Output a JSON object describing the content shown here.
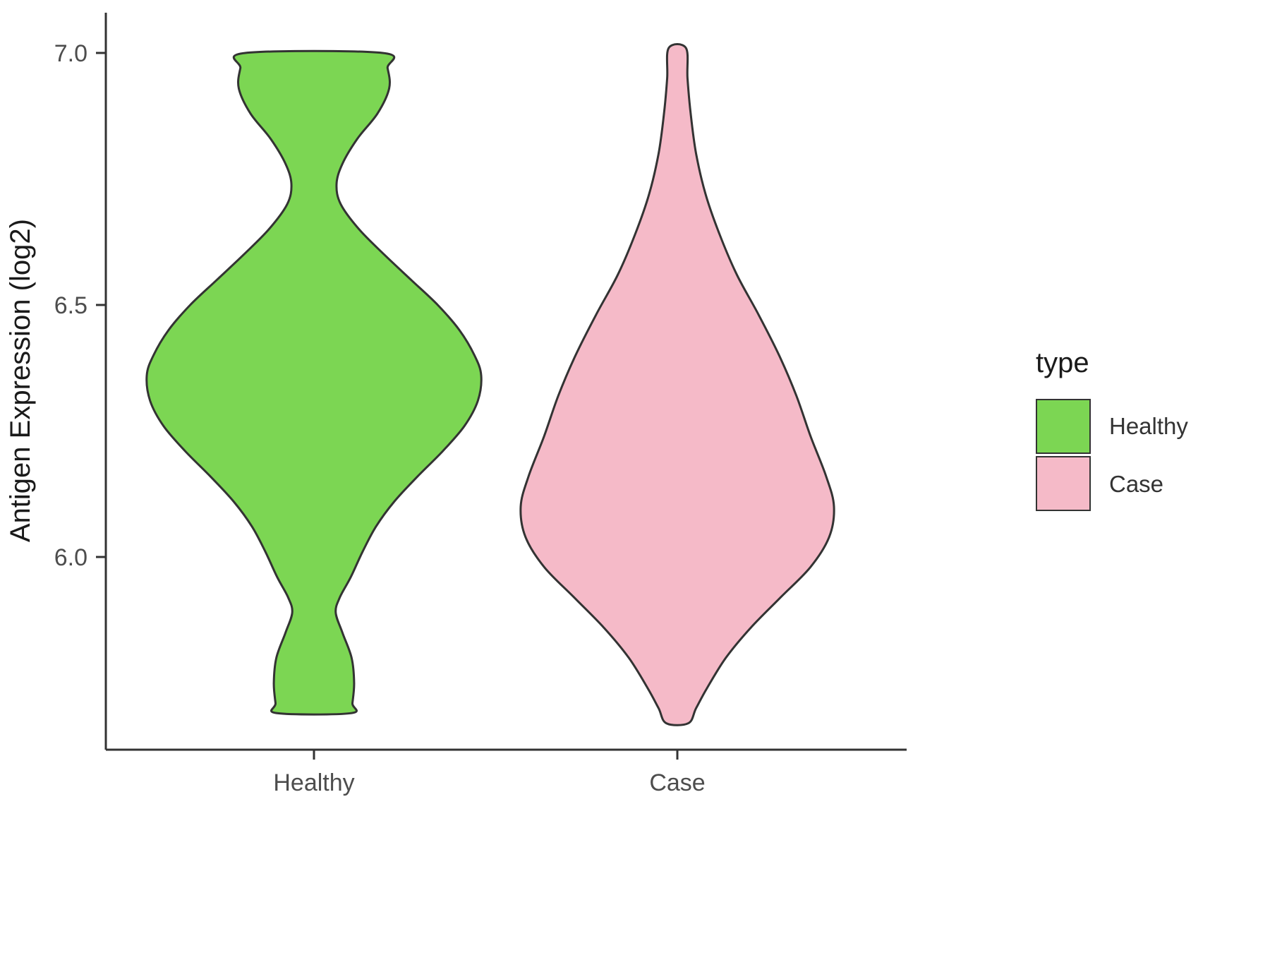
{
  "chart_data": {
    "type": "violin",
    "title": "",
    "xlabel": "",
    "ylabel": "Antigen Expression (log2)",
    "categories": [
      "Healthy",
      "Case"
    ],
    "y_ticks": [
      7.0,
      6.5,
      6.0
    ],
    "y_tick_labels": [
      "7.0",
      "6.5",
      "6.0"
    ],
    "ylim": [
      5.6,
      7.05
    ],
    "grid": "off",
    "legend_position": "right",
    "outline_color": "#333333",
    "axis_color": "#333333",
    "tick_label_color": "#4d4d4d",
    "axis_title_color": "#1a1a1a",
    "series": [
      {
        "name": "Healthy",
        "color": "#7CD653",
        "value_range": [
          5.69,
          7.0
        ],
        "profile": [
          [
            7.0,
            0.41
          ],
          [
            6.97,
            0.44
          ],
          [
            6.93,
            0.45
          ],
          [
            6.88,
            0.38
          ],
          [
            6.83,
            0.26
          ],
          [
            6.78,
            0.17
          ],
          [
            6.74,
            0.135
          ],
          [
            6.7,
            0.16
          ],
          [
            6.65,
            0.27
          ],
          [
            6.6,
            0.42
          ],
          [
            6.55,
            0.58
          ],
          [
            6.5,
            0.74
          ],
          [
            6.45,
            0.87
          ],
          [
            6.4,
            0.96
          ],
          [
            6.36,
            1.0
          ],
          [
            6.31,
            0.98
          ],
          [
            6.26,
            0.9
          ],
          [
            6.21,
            0.77
          ],
          [
            6.16,
            0.62
          ],
          [
            6.11,
            0.48
          ],
          [
            6.06,
            0.37
          ],
          [
            6.01,
            0.29
          ],
          [
            5.96,
            0.22
          ],
          [
            5.92,
            0.155
          ],
          [
            5.89,
            0.13
          ],
          [
            5.85,
            0.17
          ],
          [
            5.8,
            0.225
          ],
          [
            5.75,
            0.24
          ],
          [
            5.71,
            0.23
          ],
          [
            5.69,
            0.22
          ]
        ]
      },
      {
        "name": "Case",
        "color": "#F5BAC8",
        "value_range": [
          5.67,
          7.01
        ],
        "profile": [
          [
            7.01,
            0.055
          ],
          [
            6.95,
            0.065
          ],
          [
            6.88,
            0.085
          ],
          [
            6.8,
            0.12
          ],
          [
            6.72,
            0.18
          ],
          [
            6.64,
            0.27
          ],
          [
            6.56,
            0.38
          ],
          [
            6.48,
            0.52
          ],
          [
            6.4,
            0.65
          ],
          [
            6.32,
            0.76
          ],
          [
            6.24,
            0.85
          ],
          [
            6.16,
            0.95
          ],
          [
            6.1,
            1.0
          ],
          [
            6.04,
            0.97
          ],
          [
            5.98,
            0.85
          ],
          [
            5.92,
            0.66
          ],
          [
            5.86,
            0.47
          ],
          [
            5.8,
            0.31
          ],
          [
            5.74,
            0.19
          ],
          [
            5.7,
            0.12
          ],
          [
            5.67,
            0.07
          ]
        ]
      }
    ]
  },
  "axes": {
    "y_title": "Antigen Expression (log2)",
    "x_tick_labels": [
      "Healthy",
      "Case"
    ],
    "y_tick_labels": [
      "7.0",
      "6.5",
      "6.0"
    ]
  },
  "legend": {
    "title": "type",
    "items": [
      {
        "label": "Healthy",
        "color": "#7CD653"
      },
      {
        "label": "Case",
        "color": "#F5BAC8"
      }
    ]
  }
}
